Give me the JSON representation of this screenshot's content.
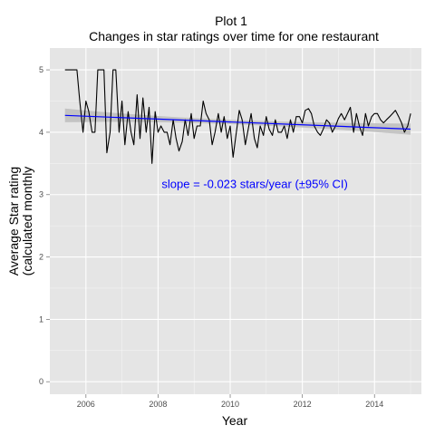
{
  "chart_data": {
    "type": "line",
    "title": "Plot 1",
    "subtitle": "Changes in star ratings over time for one restaurant",
    "xlabel": "Year",
    "ylabel_line1": "Average Star rating",
    "ylabel_line2": "(calculated monthly",
    "xlim": [
      2005.0,
      2015.3
    ],
    "ylim": [
      -0.2,
      5.35
    ],
    "x_ticks": [
      2006,
      2008,
      2010,
      2012,
      2014
    ],
    "x_tick_labels": [
      "2006",
      "2008",
      "2010",
      "2012",
      "2014"
    ],
    "y_ticks": [
      0,
      1,
      2,
      3,
      4,
      5
    ],
    "y_tick_labels": [
      "0",
      "1",
      "2",
      "3",
      "4",
      "5"
    ],
    "grid": true,
    "colors": {
      "panel": "#e5e5e5",
      "grid": "#ffffff",
      "series": "#000000",
      "trend": "#0000ff",
      "ribbon": "#bdbdbd",
      "annotation": "#0000ff"
    },
    "series": [
      {
        "x": [
          2005.42,
          2005.5,
          2005.58,
          2005.67,
          2005.75,
          2005.83,
          2005.92,
          2006.0,
          2006.08,
          2006.17,
          2006.25,
          2006.33,
          2006.42,
          2006.5,
          2006.58,
          2006.67,
          2006.75,
          2006.83,
          2006.92,
          2007.0,
          2007.08,
          2007.17,
          2007.25,
          2007.33,
          2007.42,
          2007.5,
          2007.58,
          2007.67,
          2007.75,
          2007.83,
          2007.92,
          2008.0,
          2008.08,
          2008.17,
          2008.25,
          2008.33,
          2008.42,
          2008.5,
          2008.58,
          2008.67,
          2008.75,
          2008.83,
          2008.92,
          2009.0,
          2009.08,
          2009.17,
          2009.25,
          2009.33,
          2009.42,
          2009.5,
          2009.58,
          2009.67,
          2009.75,
          2009.83,
          2009.92,
          2010.0,
          2010.08,
          2010.17,
          2010.25,
          2010.33,
          2010.42,
          2010.5,
          2010.58,
          2010.67,
          2010.75,
          2010.83,
          2010.92,
          2011.0,
          2011.08,
          2011.17,
          2011.25,
          2011.33,
          2011.42,
          2011.5,
          2011.58,
          2011.67,
          2011.75,
          2011.83,
          2011.92,
          2012.0,
          2012.08,
          2012.17,
          2012.25,
          2012.33,
          2012.42,
          2012.5,
          2012.58,
          2012.67,
          2012.75,
          2012.83,
          2012.92,
          2013.0,
          2013.08,
          2013.17,
          2013.25,
          2013.33,
          2013.42,
          2013.5,
          2013.58,
          2013.67,
          2013.75,
          2013.83,
          2013.92,
          2014.0,
          2014.08,
          2014.17,
          2014.25,
          2014.33,
          2014.42,
          2014.5,
          2014.58,
          2014.67,
          2014.75,
          2014.83,
          2014.92,
          2015.0
        ],
        "y": [
          5.0,
          5.0,
          5.0,
          5.0,
          5.0,
          4.5,
          4.0,
          4.5,
          4.33,
          4.0,
          4.0,
          5.0,
          5.0,
          5.0,
          3.67,
          4.0,
          5.0,
          5.0,
          4.0,
          4.5,
          3.8,
          4.33,
          4.0,
          3.8,
          4.6,
          3.9,
          4.55,
          4.0,
          4.4,
          3.5,
          4.33,
          4.0,
          4.1,
          4.0,
          4.0,
          3.8,
          4.2,
          3.9,
          3.7,
          3.85,
          4.2,
          3.95,
          4.3,
          3.9,
          4.1,
          4.1,
          4.5,
          4.3,
          4.2,
          3.8,
          4.0,
          4.3,
          4.0,
          4.25,
          3.9,
          4.1,
          3.6,
          4.0,
          4.35,
          4.2,
          3.8,
          4.05,
          4.3,
          3.9,
          3.75,
          4.1,
          3.95,
          4.25,
          4.05,
          3.95,
          4.2,
          4.0,
          4.0,
          4.1,
          3.9,
          4.2,
          4.0,
          4.25,
          4.25,
          4.15,
          4.35,
          4.38,
          4.3,
          4.1,
          4.0,
          3.95,
          4.05,
          4.2,
          4.15,
          4.0,
          4.1,
          4.22,
          4.3,
          4.2,
          4.3,
          4.4,
          4.0,
          4.3,
          4.1,
          3.95,
          4.3,
          4.1,
          4.25,
          4.3,
          4.3,
          4.2,
          4.15,
          4.2,
          4.25,
          4.3,
          4.35,
          4.25,
          4.15,
          4.0,
          4.1,
          4.3
        ]
      }
    ],
    "trend": {
      "x": [
        2005.42,
        2015.0
      ],
      "y": [
        4.27,
        4.05
      ],
      "ci_halfwidth_start": 0.11,
      "ci_halfwidth_end": 0.09
    },
    "annotation": {
      "text": "slope = -0.023 stars/year (±95% CI)",
      "x": 2008.1,
      "y": 3.18
    }
  }
}
